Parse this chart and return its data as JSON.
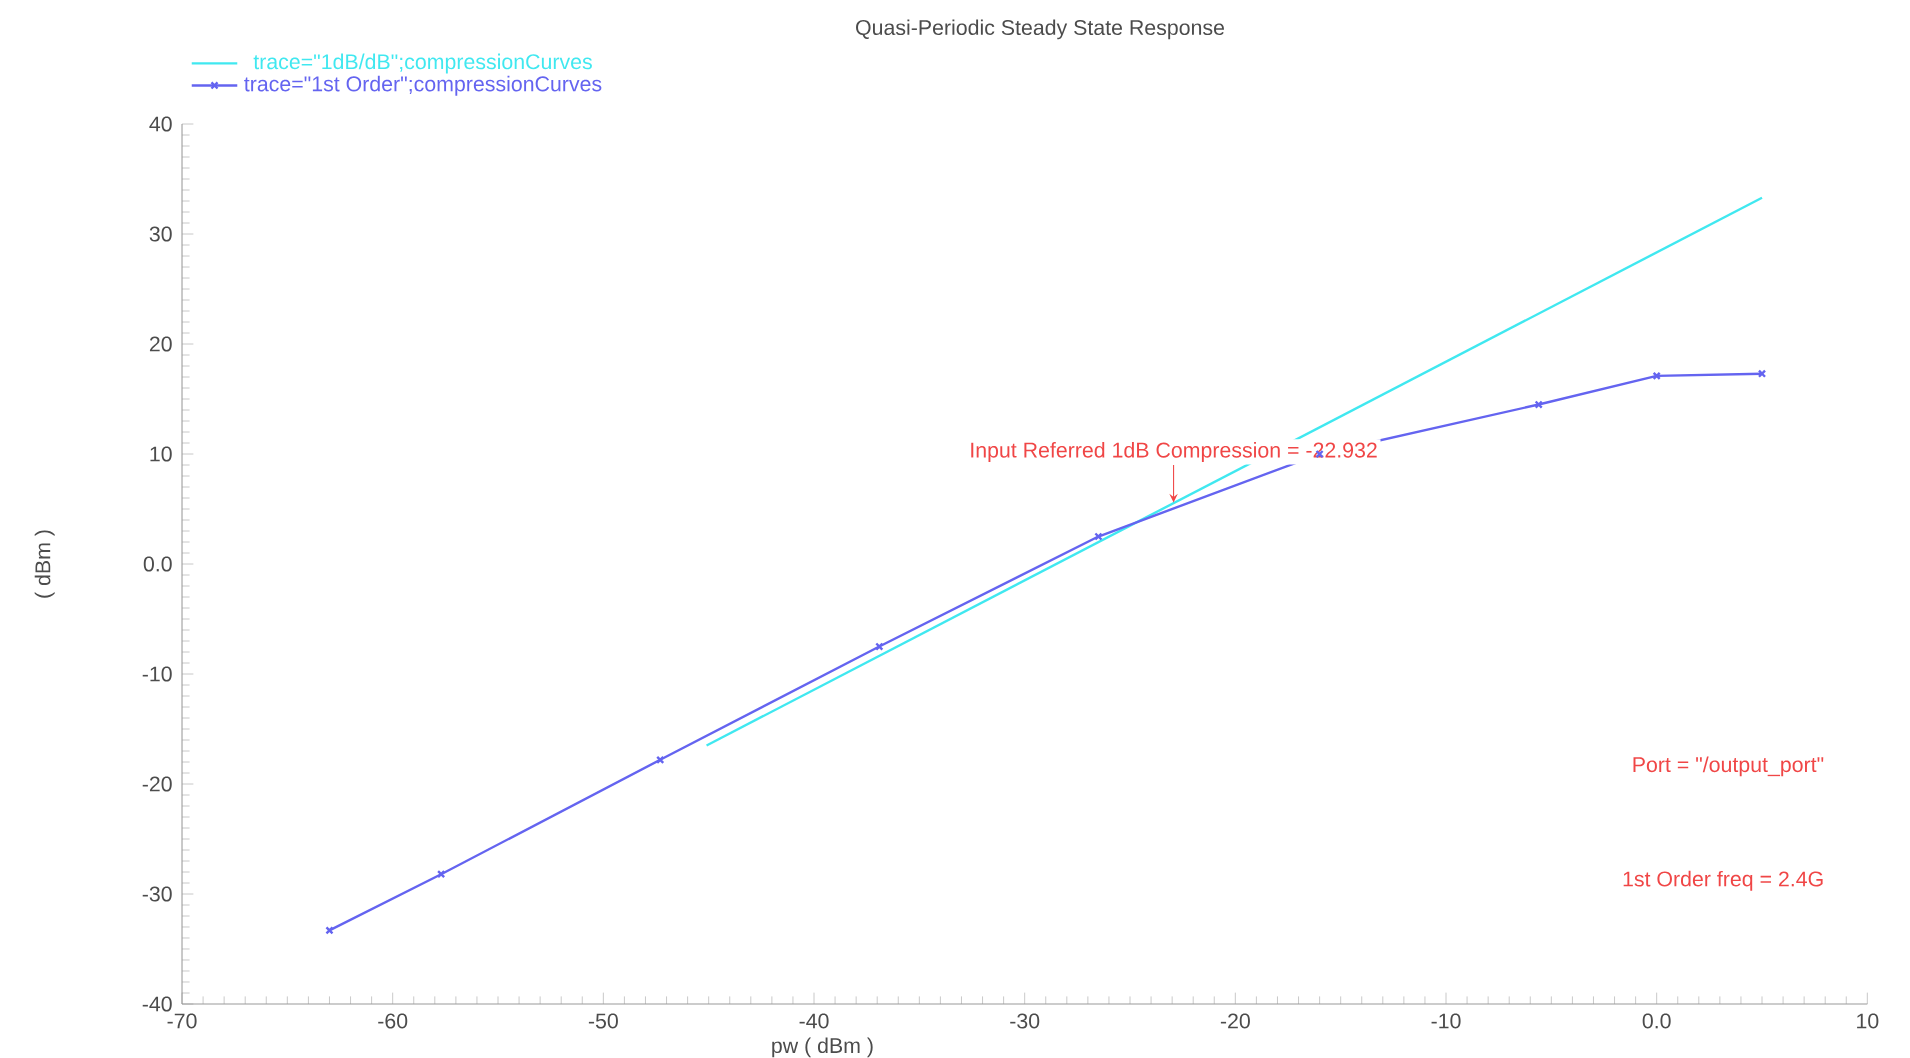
{
  "chart_data": {
    "type": "line",
    "title": "Quasi-Periodic Steady State Response",
    "xlabel": "pw ( dBm )",
    "ylabel": "( dBm )",
    "xlim": [
      -70,
      10
    ],
    "ylim": [
      -40,
      40
    ],
    "xticks": [
      -70,
      -60,
      -50,
      -40,
      -30,
      -20,
      -10,
      {
        "value": 0,
        "label": "0.0"
      },
      10
    ],
    "yticks": [
      -40,
      -30,
      -20,
      -10,
      {
        "value": 0,
        "label": "0.0"
      },
      10,
      20,
      30,
      40
    ],
    "grid": false,
    "legend": "top left",
    "line_style": "solid",
    "series": [
      {
        "name": "trace=\"1dB/dB\";compressionCurves",
        "color": "#40e8f0",
        "marker": "none",
        "x": [
          -45.1,
          5.0
        ],
        "values": [
          -16.5,
          33.3
        ]
      },
      {
        "name": "trace=\"1st Order\";compressionCurves",
        "color": "#6464f0",
        "marker": "cross",
        "x": [
          -63.0,
          -57.7,
          -47.3,
          -36.9,
          -26.5,
          -16.0,
          -5.6,
          0.0,
          5.0
        ],
        "values": [
          -33.3,
          -28.2,
          -17.8,
          -7.5,
          2.5,
          10.0,
          14.5,
          17.1,
          17.3
        ]
      }
    ],
    "annotations": [
      {
        "text": "Input Referred 1dB Compression = -22.932",
        "x": -22.932,
        "y": 5.6
      },
      "Port = \"/output_port\"",
      "1st Order freq = 2.4G"
    ]
  }
}
